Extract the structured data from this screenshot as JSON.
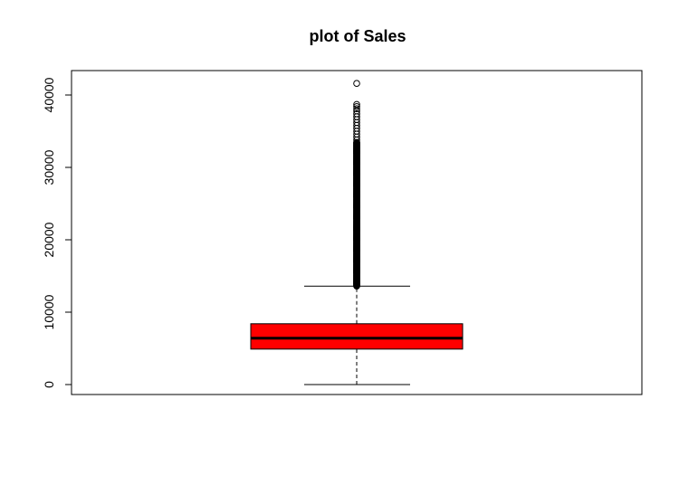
{
  "chart_data": {
    "type": "boxplot",
    "title": "plot of Sales",
    "xlabel": "",
    "ylabel": "",
    "ylim": [
      -1500,
      42000
    ],
    "y_ticks": [
      0,
      10000,
      20000,
      30000,
      40000
    ],
    "y_tick_labels": [
      "0",
      "10000",
      "20000",
      "30000",
      "40000"
    ],
    "grid": false,
    "box_color": "#ff0000",
    "series": [
      {
        "min": 0,
        "q1": 4900,
        "median": 6400,
        "q3": 8400,
        "whisker_high": 13600,
        "outlier_range": [
          13600,
          33500
        ],
        "outliers": [
          33800,
          34200,
          34600,
          35000,
          35400,
          35800,
          36200,
          36600,
          37000,
          37400,
          37800,
          38100,
          38400,
          38700,
          41600
        ]
      }
    ]
  }
}
